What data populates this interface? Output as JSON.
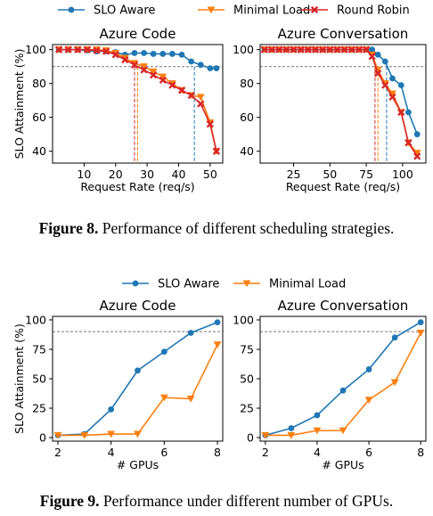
{
  "figures": [
    {
      "legend": [
        {
          "name": "SLO Aware",
          "color": "#1f77b4",
          "marker": "circle"
        },
        {
          "name": "Minimal Load",
          "color": "#ff7f0e",
          "marker": "triangle-down"
        },
        {
          "name": "Round Robin",
          "color": "#d62728",
          "marker": "x"
        }
      ],
      "caption": {
        "label": "Figure 8.",
        "text": "Performance of different scheduling strategies."
      }
    },
    {
      "legend": [
        {
          "name": "SLO Aware",
          "color": "#1f77b4",
          "marker": "circle"
        },
        {
          "name": "Minimal Load",
          "color": "#ff7f0e",
          "marker": "triangle-down"
        }
      ],
      "caption": {
        "label": "Figure 9.",
        "text": "Performance under different number of GPUs."
      }
    }
  ],
  "chart_data": [
    {
      "type": "line",
      "title": "Azure Code",
      "xlabel": "Request Rate (req/s)",
      "ylabel": "SLO Attainment (%)",
      "xlim": [
        0,
        54
      ],
      "ylim": [
        33,
        103
      ],
      "xticks": [
        10,
        20,
        30,
        40,
        50
      ],
      "yticks": [
        40,
        60,
        80,
        100
      ],
      "reference_line": {
        "y": 90,
        "color": "#777777",
        "style": "dashed"
      },
      "vlines": [
        {
          "x": 26,
          "color": "#d62728"
        },
        {
          "x": 27,
          "color": "#ff7f0e"
        },
        {
          "x": 45,
          "color": "#1f77b4"
        }
      ],
      "grid": false,
      "x": [
        2,
        5,
        8,
        11,
        14,
        17,
        20,
        23,
        26,
        29,
        32,
        35,
        38,
        41,
        44,
        47,
        50,
        52
      ],
      "series": [
        {
          "name": "SLO Aware",
          "color": "#1f77b4",
          "marker": "circle",
          "values": [
            100,
            100,
            100,
            99.5,
            99,
            99,
            98.5,
            97,
            98,
            98,
            97.5,
            97.5,
            97.5,
            97,
            93,
            91,
            89,
            89
          ]
        },
        {
          "name": "Minimal Load",
          "color": "#ff7f0e",
          "marker": "triangle-down",
          "values": [
            100,
            100,
            100,
            100,
            100,
            99.5,
            98,
            95,
            92,
            90,
            87,
            84,
            80,
            76,
            73,
            72,
            57,
            40
          ]
        },
        {
          "name": "Round Robin",
          "color": "#d62728",
          "marker": "x",
          "values": [
            100,
            100,
            100,
            100,
            99.5,
            99,
            97,
            94,
            91,
            88,
            85,
            82,
            79,
            76,
            73,
            68,
            56,
            40
          ]
        }
      ]
    },
    {
      "type": "line",
      "title": "Azure Conversation",
      "xlabel": "Request Rate (req/s)",
      "ylabel": "",
      "xlim": [
        2,
        116
      ],
      "ylim": [
        33,
        103
      ],
      "xticks": [
        25,
        50,
        75,
        100
      ],
      "yticks": [
        40,
        60,
        80,
        100
      ],
      "reference_line": {
        "y": 90,
        "color": "#777777",
        "style": "dashed"
      },
      "vlines": [
        {
          "x": 81,
          "color": "#d62728"
        },
        {
          "x": 83,
          "color": "#ff7f0e"
        },
        {
          "x": 89,
          "color": "#1f77b4"
        }
      ],
      "grid": false,
      "x": [
        5,
        10,
        15,
        20,
        25,
        30,
        35,
        40,
        45,
        50,
        55,
        60,
        65,
        70,
        75,
        79,
        83,
        88,
        93,
        99,
        104,
        110
      ],
      "series": [
        {
          "name": "SLO Aware",
          "color": "#1f77b4",
          "marker": "circle",
          "values": [
            100,
            100,
            100,
            100,
            100,
            100,
            100,
            100,
            100,
            100,
            100,
            100,
            100,
            100,
            100,
            100,
            97,
            93,
            83,
            79,
            63,
            50
          ]
        },
        {
          "name": "Minimal Load",
          "color": "#ff7f0e",
          "marker": "triangle-down",
          "values": [
            100,
            100,
            100,
            100,
            100,
            100,
            100,
            100,
            100,
            100,
            100,
            100,
            100,
            100,
            100,
            97,
            88,
            80,
            74,
            63,
            45,
            39
          ]
        },
        {
          "name": "Round Robin",
          "color": "#d62728",
          "marker": "x",
          "values": [
            100,
            100,
            100,
            100,
            100,
            100,
            100,
            100,
            100,
            100,
            100,
            100,
            100,
            100,
            100,
            96,
            86,
            79,
            72,
            63,
            45,
            37
          ]
        }
      ]
    },
    {
      "type": "line",
      "title": "Azure Code",
      "xlabel": "# GPUs",
      "ylabel": "SLO Attainment (%)",
      "xlim": [
        1.8,
        8.2
      ],
      "ylim": [
        -3,
        103
      ],
      "xticks": [
        2,
        4,
        6,
        8
      ],
      "yticks": [
        0,
        25,
        50,
        75,
        100
      ],
      "reference_line": {
        "y": 90,
        "color": "#777777",
        "style": "dashed"
      },
      "grid": false,
      "x": [
        2,
        3,
        4,
        5,
        6,
        7,
        8
      ],
      "series": [
        {
          "name": "SLO Aware",
          "color": "#1f77b4",
          "marker": "circle",
          "values": [
            2,
            3,
            24,
            57,
            73,
            89,
            98
          ]
        },
        {
          "name": "Minimal Load",
          "color": "#ff7f0e",
          "marker": "triangle-down",
          "values": [
            2,
            2,
            3,
            3,
            34,
            33,
            79
          ]
        }
      ]
    },
    {
      "type": "line",
      "title": "Azure Conversation",
      "xlabel": "# GPUs",
      "ylabel": "",
      "xlim": [
        1.8,
        8.2
      ],
      "ylim": [
        -3,
        103
      ],
      "xticks": [
        2,
        4,
        6,
        8
      ],
      "yticks": [
        0,
        25,
        50,
        75,
        100
      ],
      "reference_line": {
        "y": 90,
        "color": "#777777",
        "style": "dashed"
      },
      "grid": false,
      "x": [
        2,
        3,
        4,
        5,
        6,
        7,
        8
      ],
      "series": [
        {
          "name": "SLO Aware",
          "color": "#1f77b4",
          "marker": "circle",
          "values": [
            2,
            8,
            19,
            40,
            58,
            85,
            98
          ]
        },
        {
          "name": "Minimal Load",
          "color": "#ff7f0e",
          "marker": "triangle-down",
          "values": [
            2,
            2,
            6,
            6,
            32,
            47,
            89
          ]
        }
      ]
    }
  ]
}
